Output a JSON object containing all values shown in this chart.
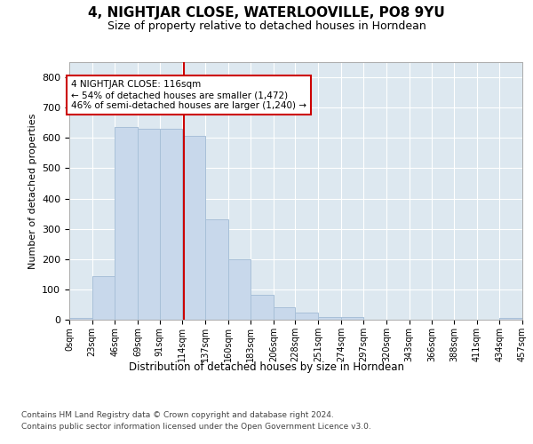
{
  "title": "4, NIGHTJAR CLOSE, WATERLOOVILLE, PO8 9YU",
  "subtitle": "Size of property relative to detached houses in Horndean",
  "xlabel": "Distribution of detached houses by size in Horndean",
  "ylabel": "Number of detached properties",
  "bin_edges": [
    0,
    23,
    46,
    69,
    91,
    114,
    137,
    160,
    183,
    206,
    228,
    251,
    274,
    297,
    320,
    343,
    366,
    388,
    411,
    434,
    457
  ],
  "bar_heights": [
    5,
    145,
    635,
    630,
    630,
    608,
    330,
    200,
    83,
    40,
    22,
    10,
    10,
    0,
    0,
    0,
    0,
    0,
    0,
    5
  ],
  "tick_labels": [
    "0sqm",
    "23sqm",
    "46sqm",
    "69sqm",
    "91sqm",
    "114sqm",
    "137sqm",
    "160sqm",
    "183sqm",
    "206sqm",
    "228sqm",
    "251sqm",
    "274sqm",
    "297sqm",
    "320sqm",
    "343sqm",
    "366sqm",
    "388sqm",
    "411sqm",
    "434sqm",
    "457sqm"
  ],
  "bar_color": "#c8d8eb",
  "bar_edge_color": "#a8c0d8",
  "vline_x": 116,
  "vline_color": "#cc0000",
  "ylim": [
    0,
    850
  ],
  "yticks": [
    0,
    100,
    200,
    300,
    400,
    500,
    600,
    700,
    800
  ],
  "annotation_text": "4 NIGHTJAR CLOSE: 116sqm\n← 54% of detached houses are smaller (1,472)\n46% of semi-detached houses are larger (1,240) →",
  "annotation_box_color": "#ffffff",
  "annotation_box_edge": "#cc0000",
  "footer_line1": "Contains HM Land Registry data © Crown copyright and database right 2024.",
  "footer_line2": "Contains public sector information licensed under the Open Government Licence v3.0.",
  "plot_background": "#dde8f0",
  "grid_color": "#ffffff"
}
